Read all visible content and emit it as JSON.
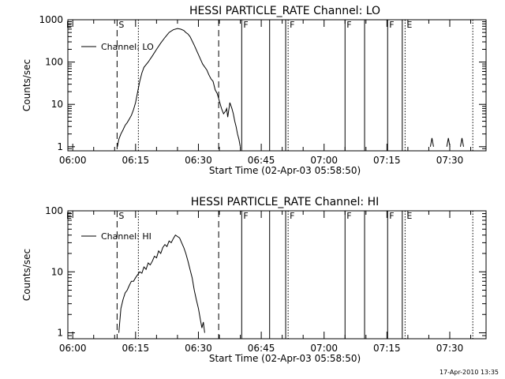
{
  "footer_date": "17-Apr-2010 13:35",
  "chart_data": [
    {
      "type": "line",
      "title": "HESSI PARTICLE_RATE Channel: LO",
      "xlabel": "Start Time (02-Apr-03 05:58:50)",
      "ylabel": "Counts/sec",
      "yscale": "log",
      "xlim": [
        "05:58:50",
        "07:38:40"
      ],
      "ylim": [
        0.8,
        1000
      ],
      "xticks": [
        "06:00",
        "06:15",
        "06:30",
        "06:45",
        "07:00",
        "07:15",
        "07:30"
      ],
      "yticks": [
        "1",
        "10",
        "100",
        "1000"
      ],
      "grid": false,
      "legend": {
        "placement": "top-left",
        "entries": [
          "Channel: LO"
        ]
      },
      "series": [
        {
          "name": "Channel: LO",
          "x": [
            "06:10:40",
            "06:11:00",
            "06:11:30",
            "06:12:00",
            "06:12:30",
            "06:13:00",
            "06:13:30",
            "06:14:00",
            "06:14:30",
            "06:15:00",
            "06:15:30",
            "06:16:00",
            "06:16:30",
            "06:17:00",
            "06:18:00",
            "06:19:00",
            "06:20:00",
            "06:21:00",
            "06:22:00",
            "06:23:00",
            "06:24:00",
            "06:25:00",
            "06:25:45",
            "06:26:30",
            "06:27:00",
            "06:27:30",
            "06:28:00",
            "06:29:00",
            "06:30:00",
            "06:31:00",
            "06:32:00",
            "06:32:30",
            "06:33:00",
            "06:33:30",
            "06:34:00",
            "06:34:30",
            "06:35:00",
            "06:35:30",
            "06:36:00",
            "06:36:30",
            "06:36:45",
            "06:37:00",
            "06:37:30",
            "06:38:00",
            "06:38:20",
            "06:38:40",
            "06:39:00",
            "06:39:20",
            "06:39:40",
            "06:40:00"
          ],
          "y": [
            1,
            1.5,
            2.0,
            2.5,
            3.2,
            3.7,
            4.5,
            5.5,
            7.5,
            11,
            20,
            35,
            55,
            75,
            100,
            140,
            200,
            280,
            380,
            500,
            580,
            620,
            600,
            560,
            500,
            460,
            400,
            250,
            150,
            90,
            65,
            50,
            40,
            35,
            22,
            18,
            12,
            8,
            6,
            7,
            8,
            5,
            11,
            8,
            6,
            4,
            3,
            2,
            1.5,
            1
          ]
        }
      ],
      "spikes": {
        "x": [
          "07:25:45",
          "07:29:40",
          "07:32:55"
        ],
        "y": 1.6
      },
      "markers": [
        {
          "label": "S",
          "time": "06:10:35",
          "style": "dashed"
        },
        {
          "label": "",
          "time": "06:15:40",
          "style": "dotted"
        },
        {
          "label": "",
          "time": "06:34:50",
          "style": "dashed"
        },
        {
          "label": "F",
          "time": "06:40:20",
          "style": "solid"
        },
        {
          "label": "",
          "time": "06:47:00",
          "style": "solid"
        },
        {
          "label": "",
          "time": "06:50:50",
          "style": "solid"
        },
        {
          "label": "F",
          "time": "06:51:25",
          "style": "dotted"
        },
        {
          "label": "F",
          "time": "07:05:00",
          "style": "solid"
        },
        {
          "label": "",
          "time": "07:09:40",
          "style": "solid"
        },
        {
          "label": "F",
          "time": "07:15:10",
          "style": "solid"
        },
        {
          "label": "",
          "time": "07:18:40",
          "style": "solid"
        },
        {
          "label": "E",
          "time": "07:19:20",
          "style": "dotted"
        },
        {
          "label": "",
          "time": "07:35:30",
          "style": "dotted"
        }
      ],
      "edge_label": "E"
    },
    {
      "type": "line",
      "title": "HESSI PARTICLE_RATE Channel: HI",
      "xlabel": "Start Time (02-Apr-03 05:58:50)",
      "ylabel": "Counts/sec",
      "yscale": "log",
      "xlim": [
        "05:58:50",
        "07:38:40"
      ],
      "ylim": [
        0.8,
        100
      ],
      "xticks": [
        "06:00",
        "06:15",
        "06:30",
        "06:45",
        "07:00",
        "07:15",
        "07:30"
      ],
      "yticks": [
        "1",
        "10",
        "100"
      ],
      "grid": false,
      "legend": {
        "placement": "top-left",
        "entries": [
          "Channel: HI"
        ]
      },
      "series": [
        {
          "name": "Channel: HI",
          "x": [
            "06:11:00",
            "06:11:30",
            "06:12:00",
            "06:12:30",
            "06:13:00",
            "06:13:30",
            "06:14:00",
            "06:14:30",
            "06:15:00",
            "06:15:30",
            "06:16:00",
            "06:16:30",
            "06:17:00",
            "06:17:30",
            "06:18:00",
            "06:18:30",
            "06:19:00",
            "06:19:30",
            "06:20:00",
            "06:20:30",
            "06:21:00",
            "06:21:30",
            "06:22:00",
            "06:22:30",
            "06:23:00",
            "06:23:30",
            "06:24:00",
            "06:24:30",
            "06:25:00",
            "06:25:30",
            "06:26:00",
            "06:26:30",
            "06:27:00",
            "06:27:30",
            "06:28:00",
            "06:28:30",
            "06:29:00",
            "06:29:30",
            "06:30:00",
            "06:30:30",
            "06:30:50",
            "06:31:10",
            "06:31:30"
          ],
          "y": [
            1,
            2.5,
            3.5,
            4.5,
            5,
            6,
            7,
            7,
            8,
            9,
            10,
            9.5,
            12,
            11,
            14,
            13,
            15,
            18,
            17,
            22,
            20,
            25,
            28,
            26,
            32,
            30,
            35,
            40,
            38,
            36,
            30,
            25,
            20,
            15,
            11,
            8,
            5,
            3.5,
            2.5,
            1.6,
            1.2,
            1.5,
            1
          ]
        }
      ],
      "markers": [
        {
          "label": "S",
          "time": "06:10:35",
          "style": "dashed"
        },
        {
          "label": "",
          "time": "06:15:40",
          "style": "dotted"
        },
        {
          "label": "",
          "time": "06:34:50",
          "style": "dashed"
        },
        {
          "label": "F",
          "time": "06:40:20",
          "style": "solid"
        },
        {
          "label": "",
          "time": "06:47:00",
          "style": "solid"
        },
        {
          "label": "",
          "time": "06:50:50",
          "style": "solid"
        },
        {
          "label": "F",
          "time": "06:51:25",
          "style": "dotted"
        },
        {
          "label": "F",
          "time": "07:05:00",
          "style": "solid"
        },
        {
          "label": "",
          "time": "07:09:40",
          "style": "solid"
        },
        {
          "label": "F",
          "time": "07:15:10",
          "style": "solid"
        },
        {
          "label": "",
          "time": "07:18:40",
          "style": "solid"
        },
        {
          "label": "E",
          "time": "07:19:20",
          "style": "dotted"
        },
        {
          "label": "",
          "time": "07:35:30",
          "style": "dotted"
        }
      ],
      "edge_label": "E"
    }
  ]
}
